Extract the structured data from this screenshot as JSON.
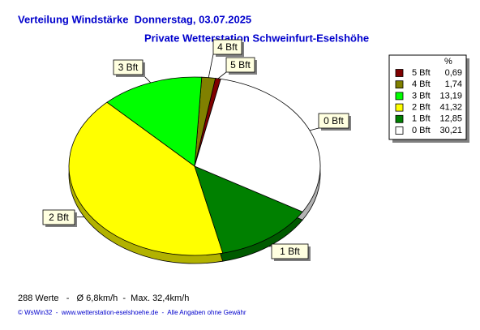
{
  "chart_data": {
    "type": "pie",
    "title": "Verteilung Windstärke  Donnerstag, 03.07.2025",
    "subtitle": "Private Wetterstation Schweinfurt-Eselshöhe",
    "categories": [
      "5 Bft",
      "4 Bft",
      "3 Bft",
      "2 Bft",
      "1 Bft",
      "0 Bft"
    ],
    "values": [
      0.69,
      1.74,
      13.19,
      41.32,
      12.85,
      30.21
    ],
    "value_labels": [
      "0,69",
      "1,74",
      "13,19",
      "41,32",
      "12,85",
      "30,21"
    ],
    "colors": [
      "#800000",
      "#808000",
      "#00ff00",
      "#ffff00",
      "#008000",
      "#ffffff"
    ],
    "legend_header": "%",
    "legend_position": "right",
    "footer": "288 Werte   -   Ø 6,8km/h  -  Max. 32,4km/h",
    "credits": "© WsWin32  -  www.wetterstation-eselshoehe.de  -  Alle Angaben ohne Gewähr"
  }
}
